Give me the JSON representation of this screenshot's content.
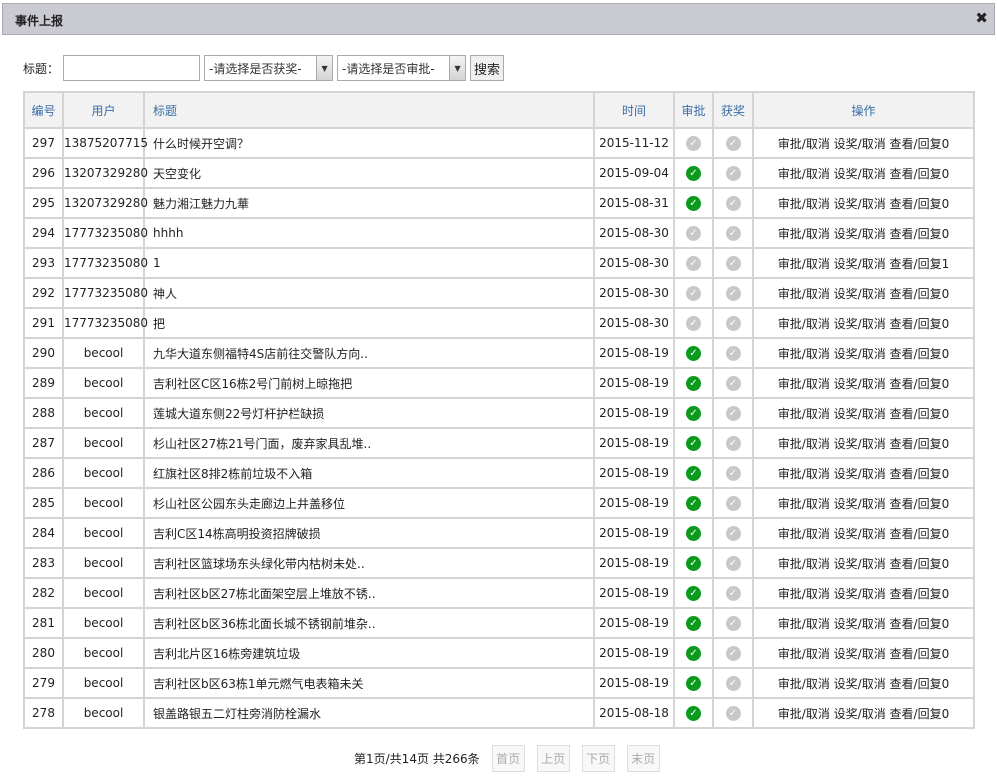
{
  "window": {
    "title": "事件上报",
    "close": "✖"
  },
  "search": {
    "label": "标题：",
    "title_value": "",
    "title_placeholder": "",
    "award_select": "-请选择是否获奖-",
    "approve_select": "-请选择是否审批-",
    "button": "搜索"
  },
  "table": {
    "headers": [
      "编号",
      "用户",
      "标题",
      "时间",
      "审批",
      "获奖",
      "操作"
    ],
    "op_labels": {
      "approve": "审批/取消",
      "award": "设奖/取消",
      "view": "查看/回复"
    },
    "rows": [
      {
        "id": "297",
        "user": "13875207715",
        "title": "什么时候开空调？",
        "date": "2015-11-12",
        "approved": false,
        "awarded": false,
        "replies": "0"
      },
      {
        "id": "296",
        "user": "13207329280",
        "title": "天空变化",
        "date": "2015-09-04",
        "approved": true,
        "awarded": false,
        "replies": "0"
      },
      {
        "id": "295",
        "user": "13207329280",
        "title": "魅力湘江魅力九華",
        "date": "2015-08-31",
        "approved": true,
        "awarded": false,
        "replies": "0"
      },
      {
        "id": "294",
        "user": "17773235080",
        "title": "hhhh",
        "date": "2015-08-30",
        "approved": false,
        "awarded": false,
        "replies": "0"
      },
      {
        "id": "293",
        "user": "17773235080",
        "title": "1",
        "date": "2015-08-30",
        "approved": false,
        "awarded": false,
        "replies": "1"
      },
      {
        "id": "292",
        "user": "17773235080",
        "title": "神人",
        "date": "2015-08-30",
        "approved": false,
        "awarded": false,
        "replies": "0"
      },
      {
        "id": "291",
        "user": "17773235080",
        "title": "把",
        "date": "2015-08-30",
        "approved": false,
        "awarded": false,
        "replies": "0"
      },
      {
        "id": "290",
        "user": "becool",
        "title": "九华大道东侧福特4S店前往交警队方向..",
        "date": "2015-08-19",
        "approved": true,
        "awarded": false,
        "replies": "0"
      },
      {
        "id": "289",
        "user": "becool",
        "title": "吉利社区C区16栋2号门前树上晾拖把",
        "date": "2015-08-19",
        "approved": true,
        "awarded": false,
        "replies": "0"
      },
      {
        "id": "288",
        "user": "becool",
        "title": "莲城大道东侧22号灯杆护栏缺损",
        "date": "2015-08-19",
        "approved": true,
        "awarded": false,
        "replies": "0"
      },
      {
        "id": "287",
        "user": "becool",
        "title": "杉山社区27栋21号门面，废弃家具乱堆..",
        "date": "2015-08-19",
        "approved": true,
        "awarded": false,
        "replies": "0"
      },
      {
        "id": "286",
        "user": "becool",
        "title": "红旗社区8排2栋前垃圾不入箱",
        "date": "2015-08-19",
        "approved": true,
        "awarded": false,
        "replies": "0"
      },
      {
        "id": "285",
        "user": "becool",
        "title": "杉山社区公园东头走廊边上井盖移位",
        "date": "2015-08-19",
        "approved": true,
        "awarded": false,
        "replies": "0"
      },
      {
        "id": "284",
        "user": "becool",
        "title": "吉利C区14栋高明投资招牌破损",
        "date": "2015-08-19",
        "approved": true,
        "awarded": false,
        "replies": "0"
      },
      {
        "id": "283",
        "user": "becool",
        "title": "吉利社区篮球场东头绿化带内枯树未处..",
        "date": "2015-08-19",
        "approved": true,
        "awarded": false,
        "replies": "0"
      },
      {
        "id": "282",
        "user": "becool",
        "title": "吉利社区b区27栋北面架空层上堆放不锈..",
        "date": "2015-08-19",
        "approved": true,
        "awarded": false,
        "replies": "0"
      },
      {
        "id": "281",
        "user": "becool",
        "title": "吉利社区b区36栋北面长城不锈钢前堆杂..",
        "date": "2015-08-19",
        "approved": true,
        "awarded": false,
        "replies": "0"
      },
      {
        "id": "280",
        "user": "becool",
        "title": "吉利北片区16栋旁建筑垃圾",
        "date": "2015-08-19",
        "approved": true,
        "awarded": false,
        "replies": "0"
      },
      {
        "id": "279",
        "user": "becool",
        "title": "吉利社区b区63栋1单元燃气电表箱未关",
        "date": "2015-08-19",
        "approved": true,
        "awarded": false,
        "replies": "0"
      },
      {
        "id": "278",
        "user": "becool",
        "title": "银盖路银五二灯柱旁消防栓漏水",
        "date": "2015-08-18",
        "approved": true,
        "awarded": false,
        "replies": "0"
      }
    ]
  },
  "pager": {
    "info": "第1页/共14页 共266条",
    "first": "首页",
    "prev": "上页",
    "next": "下页",
    "last": "末页"
  },
  "colors": {
    "approved": "#0a9a1e",
    "pending": "#c8c8c8",
    "header_text": "#3a6ea5"
  }
}
